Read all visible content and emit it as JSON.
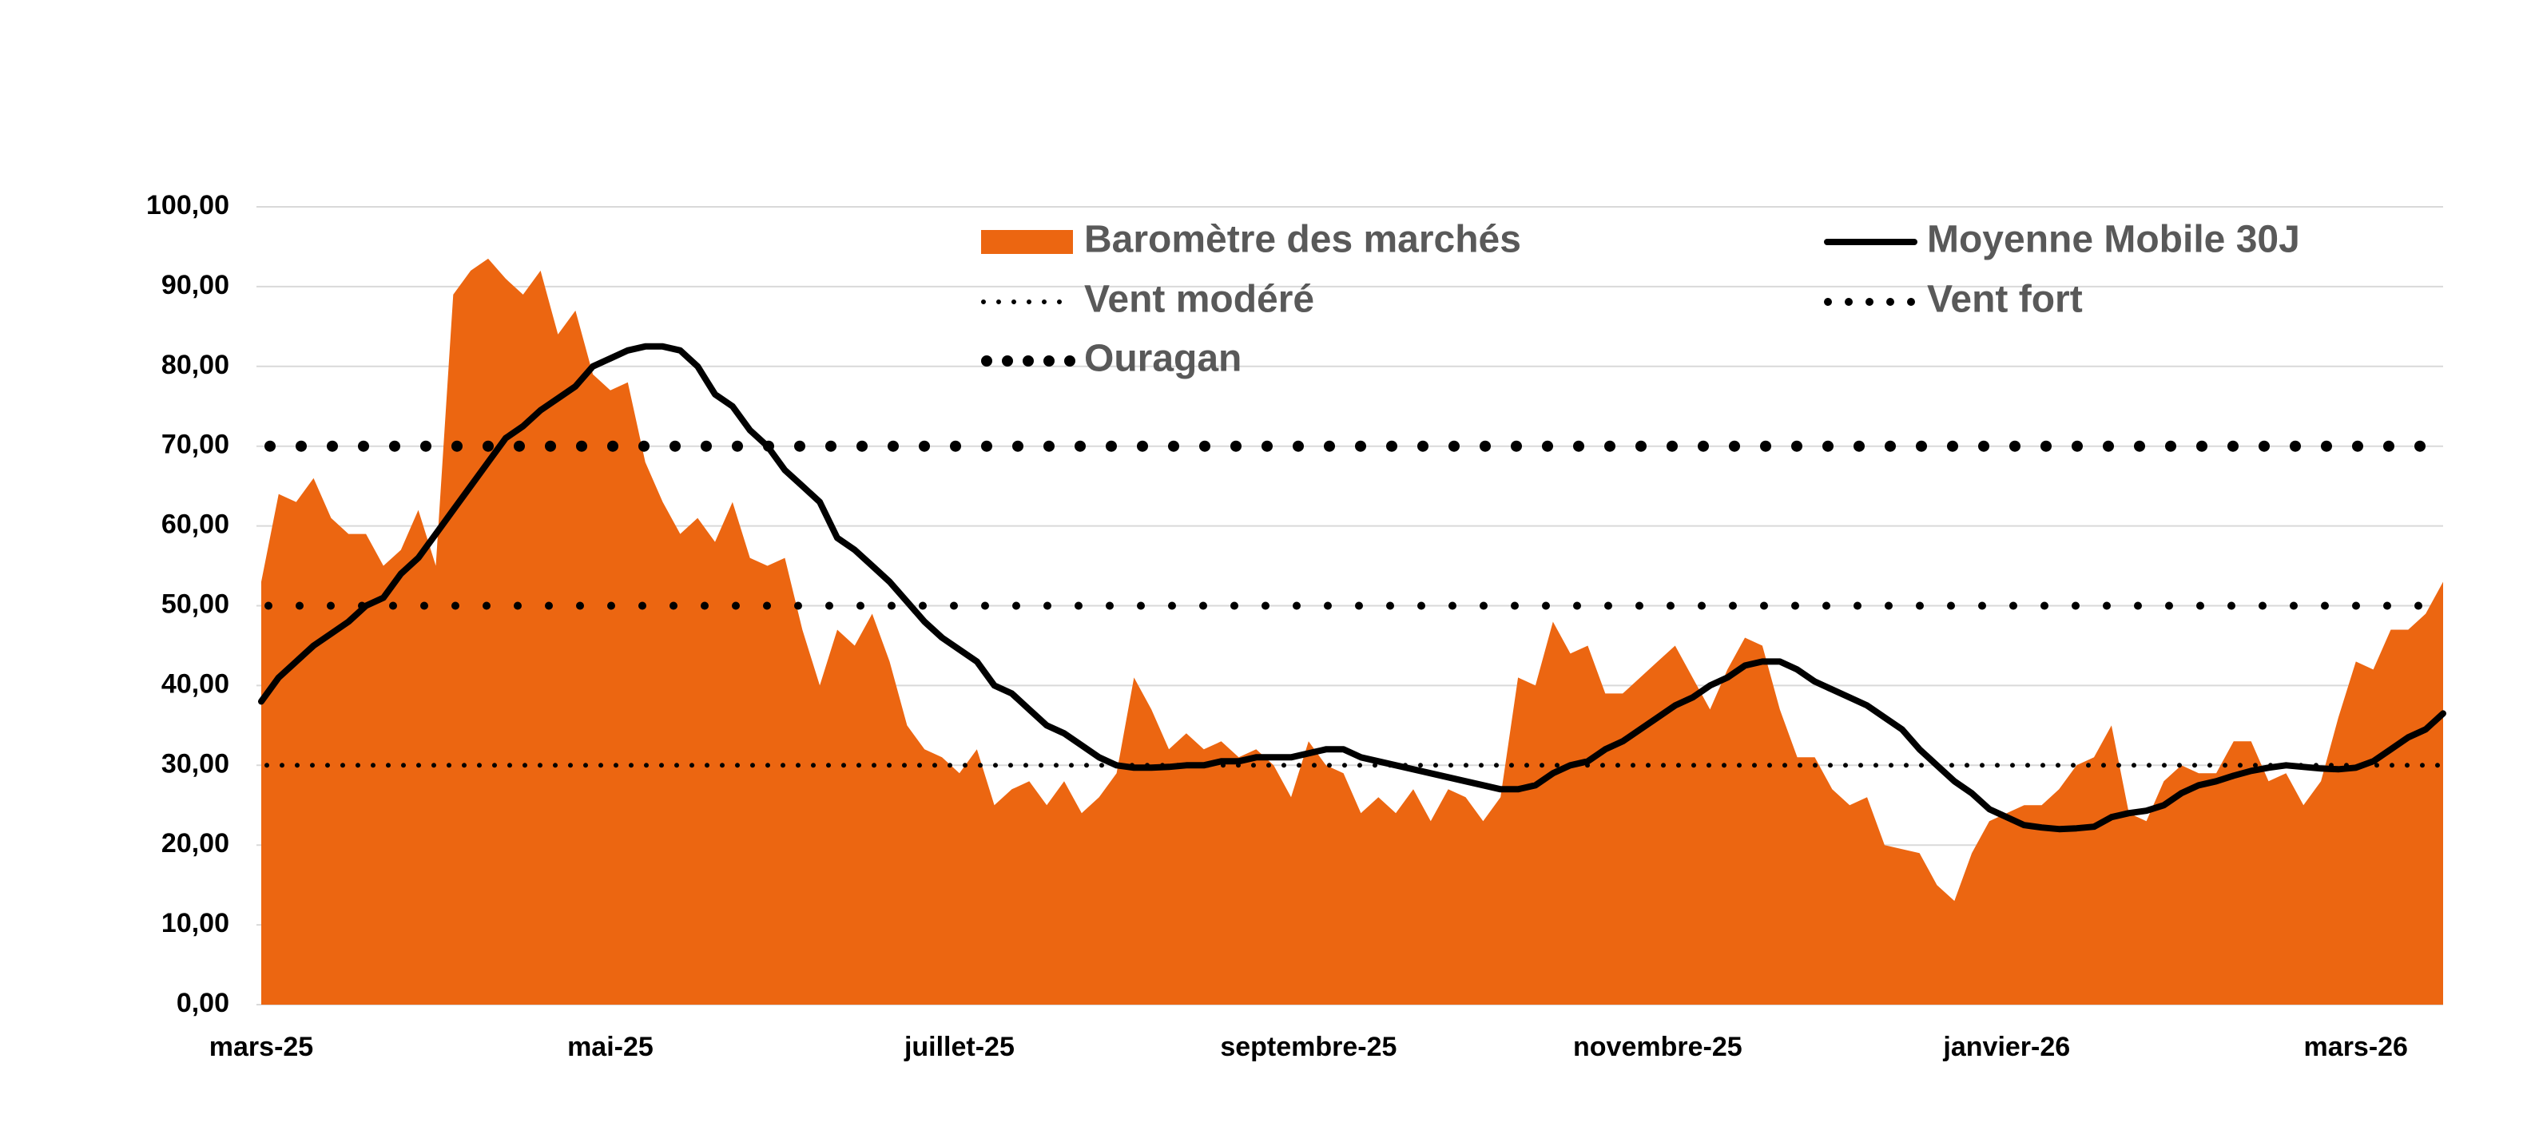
{
  "chart_data": {
    "type": "area-line",
    "categories": [
      "mars-25",
      null,
      null,
      null,
      null,
      null,
      null,
      null,
      null,
      null,
      null,
      null,
      null,
      null,
      null,
      null,
      null,
      null,
      null,
      null,
      "mai-25",
      null,
      null,
      null,
      null,
      null,
      null,
      null,
      null,
      null,
      null,
      null,
      null,
      null,
      null,
      null,
      null,
      null,
      null,
      null,
      "juillet-25",
      null,
      null,
      null,
      null,
      null,
      null,
      null,
      null,
      null,
      null,
      null,
      null,
      null,
      null,
      null,
      null,
      null,
      null,
      null,
      "septembre-25",
      null,
      null,
      null,
      null,
      null,
      null,
      null,
      null,
      null,
      null,
      null,
      null,
      null,
      null,
      null,
      null,
      null,
      null,
      null,
      "novembre-25",
      null,
      null,
      null,
      null,
      null,
      null,
      null,
      null,
      null,
      null,
      null,
      null,
      null,
      null,
      null,
      null,
      null,
      null,
      null,
      "janvier-26",
      null,
      null,
      null,
      null,
      null,
      null,
      null,
      null,
      null,
      null,
      null,
      null,
      null,
      null,
      null,
      null,
      null,
      null,
      null,
      "mars-26",
      null,
      null,
      null,
      null,
      null
    ],
    "series": [
      {
        "name": "Baromètre des marchés",
        "kind": "area",
        "color": "#ec6611",
        "values": [
          53,
          64,
          63,
          66,
          61,
          59,
          59,
          55,
          57,
          62,
          55,
          89,
          92,
          93.5,
          91,
          89,
          92,
          84,
          87,
          79,
          77,
          78,
          68,
          63,
          59,
          61,
          58,
          63,
          56,
          55,
          56,
          47,
          40,
          47,
          45,
          49,
          43,
          35,
          32,
          31,
          29,
          32,
          25,
          27,
          28,
          25,
          28,
          24,
          26,
          29,
          41,
          37,
          32,
          34,
          32,
          33,
          31,
          32,
          30,
          26,
          33,
          30,
          29,
          24,
          26,
          24,
          27,
          23,
          27,
          26,
          23,
          26,
          41,
          40,
          48,
          44,
          45,
          39,
          39,
          41,
          43,
          45,
          41,
          37,
          42,
          46,
          45,
          37,
          31,
          31,
          27,
          25,
          26,
          20,
          19.5,
          19,
          15,
          13,
          19,
          23,
          24,
          25,
          25,
          27,
          30,
          31,
          35,
          24,
          23,
          28,
          30,
          29,
          29,
          33,
          33,
          28,
          29,
          25,
          28,
          36,
          43,
          42,
          47,
          47,
          49,
          53
        ]
      },
      {
        "name": "Moyenne Mobile 30J",
        "kind": "line",
        "color": "#000000",
        "values": [
          38,
          41,
          43,
          45,
          46.5,
          48,
          50,
          51,
          54,
          56,
          59,
          62,
          65,
          68,
          71,
          72.5,
          74.5,
          76,
          77.5,
          80,
          81,
          82,
          82.5,
          82.5,
          82,
          80,
          76.5,
          75,
          72,
          70,
          67,
          65,
          63,
          58.5,
          57,
          55,
          53,
          50.5,
          48,
          46,
          44.5,
          43,
          40,
          39,
          37,
          35,
          34,
          32.5,
          31,
          30,
          29.7,
          29.7,
          29.8,
          30,
          30,
          30.5,
          30.5,
          31,
          31,
          31,
          31.5,
          32,
          32,
          31,
          30.5,
          30,
          29.5,
          29,
          28.5,
          28,
          27.5,
          27,
          27,
          27.5,
          29,
          30,
          30.5,
          32,
          33,
          34.5,
          36,
          37.5,
          38.5,
          40,
          41,
          42.5,
          43,
          43,
          42,
          40.5,
          39.5,
          38.5,
          37.5,
          36,
          34.5,
          32,
          30,
          28,
          26.5,
          24.5,
          23.5,
          22.5,
          22.2,
          22,
          22.1,
          22.3,
          23.5,
          24,
          24.3,
          25,
          26.5,
          27.5,
          28,
          28.7,
          29.3,
          29.7,
          30,
          29.8,
          29.6,
          29.5,
          29.7,
          30.5,
          32,
          33.5,
          34.5,
          36.5
        ]
      }
    ],
    "reference_lines": [
      {
        "name": "Vent modéré",
        "value": 30,
        "color": "#000000",
        "style": "small-dots"
      },
      {
        "name": "Vent fort",
        "value": 50,
        "color": "#000000",
        "style": "medium-dots"
      },
      {
        "name": "Ouragan",
        "value": 70,
        "color": "#000000",
        "style": "large-dots"
      }
    ],
    "ylim": [
      0,
      100
    ],
    "yticks": [
      {
        "value": 0,
        "label": "0,00"
      },
      {
        "value": 10,
        "label": "10,00"
      },
      {
        "value": 20,
        "label": "20,00"
      },
      {
        "value": 30,
        "label": "30,00"
      },
      {
        "value": 40,
        "label": "40,00"
      },
      {
        "value": 50,
        "label": "50,00"
      },
      {
        "value": 60,
        "label": "60,00"
      },
      {
        "value": 70,
        "label": "70,00"
      },
      {
        "value": 80,
        "label": "80,00"
      },
      {
        "value": 90,
        "label": "90,00"
      },
      {
        "value": 100,
        "label": "100,00"
      }
    ],
    "grid": true,
    "grid_color": "#d9d9d9",
    "legend": "top"
  }
}
